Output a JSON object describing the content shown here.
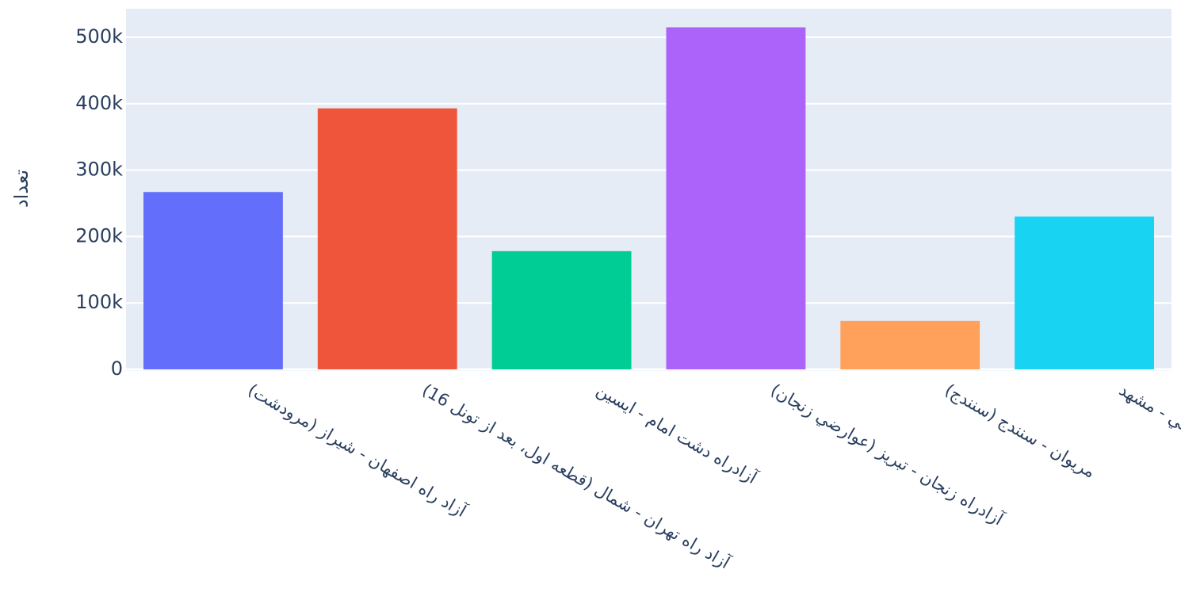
{
  "chart_data": {
    "type": "bar",
    "categories": [
      "آزاد راه اصفهان - شیراز (مرودشت)",
      "آزاد راه تهران - شمال (قطعه اول، بعد از تونل 16)",
      "آزادراه دشت امام - ایسین",
      "آزادراه زنجان - تبریز (عوارضي زنجان)",
      "مریوان - سنندج (سنندج)",
      "میامي - مشهد"
    ],
    "values": [
      267000,
      393000,
      178000,
      515000,
      73000,
      230000
    ],
    "colors": [
      "#636efa",
      "#EF553B",
      "#00cc96",
      "#ab63fa",
      "#FFA15A",
      "#19d3f3"
    ],
    "ylabel": "تعداد",
    "xlabel": "",
    "ylim": [
      0,
      543000
    ],
    "yticks": [
      0,
      100000,
      200000,
      300000,
      400000,
      500000
    ],
    "ytick_labels": [
      "0",
      "100k",
      "200k",
      "300k",
      "400k",
      "500k"
    ],
    "grid": true,
    "plot_bg": "#e5ecf6"
  }
}
